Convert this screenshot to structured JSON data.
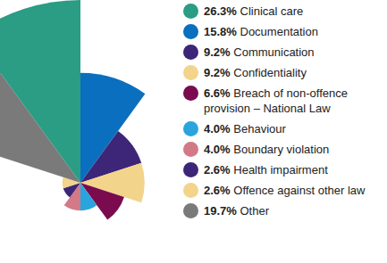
{
  "chart_data": {
    "type": "rose",
    "categories": [
      "Clinical care",
      "Documentation",
      "Communication",
      "Confidentiality",
      "Breach of non-offence provision – National Law",
      "Behaviour",
      "Boundary violation",
      "Health impairment",
      "Offence against other law",
      "Other"
    ],
    "values": [
      26.3,
      15.8,
      9.2,
      9.2,
      6.6,
      4.0,
      4.0,
      2.6,
      2.6,
      19.7
    ],
    "value_labels": [
      "26.3%",
      "15.8%",
      "9.2%",
      "9.2%",
      "6.6%",
      "4.0%",
      "4.0%",
      "2.6%",
      "2.6%",
      "19.7%"
    ],
    "colors": [
      "#2a9d84",
      "#0b6fbf",
      "#3d2577",
      "#f2d48a",
      "#7a0b4f",
      "#2aa4dd",
      "#d27a86",
      "#3d2577",
      "#f2d48a",
      "#7a7a7a"
    ],
    "legend": "right"
  }
}
